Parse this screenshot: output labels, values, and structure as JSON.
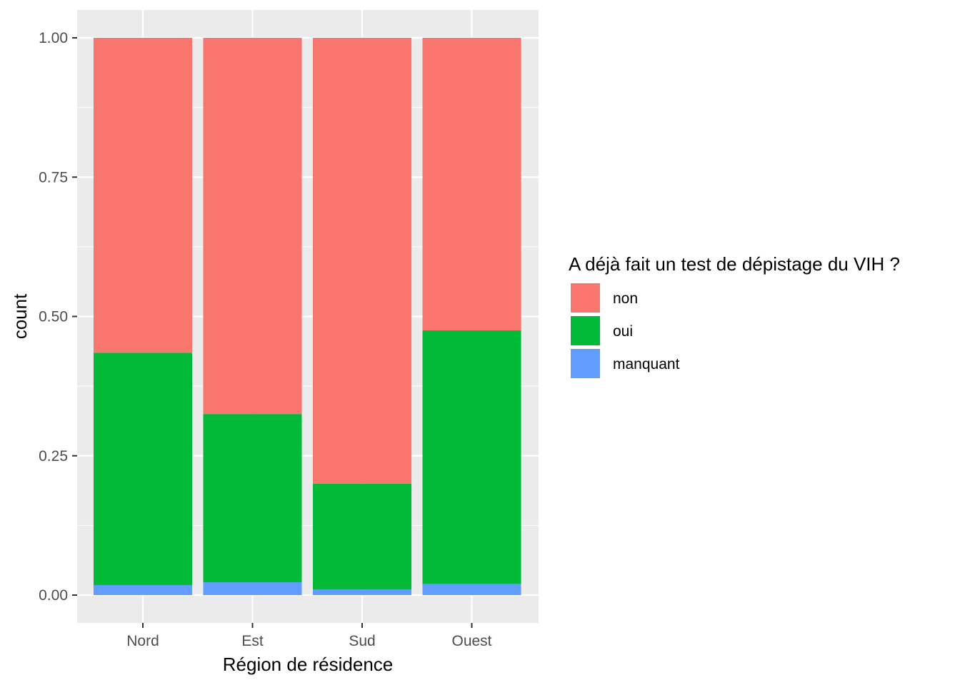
{
  "chart_data": {
    "type": "bar",
    "stacked": true,
    "normalized": true,
    "categories": [
      "Nord",
      "Est",
      "Sud",
      "Ouest"
    ],
    "series": [
      {
        "name": "non",
        "color": "#F8766D",
        "values": [
          0.565,
          0.675,
          0.8,
          0.525
        ]
      },
      {
        "name": "oui",
        "color": "#00BA38",
        "values": [
          0.417,
          0.302,
          0.19,
          0.455
        ]
      },
      {
        "name": "manquant",
        "color": "#619CFF",
        "values": [
          0.018,
          0.023,
          0.01,
          0.02
        ]
      }
    ],
    "xlabel": "Région de résidence",
    "ylabel": "count",
    "ylim": [
      0,
      1
    ],
    "yticks": [
      "0.00",
      "0.25",
      "0.50",
      "0.75",
      "1.00"
    ],
    "ytick_values": [
      0,
      0.25,
      0.5,
      0.75,
      1
    ],
    "grid": true,
    "panel_background": "#EBEBEB",
    "legend": {
      "title": "A déjà fait un test de dépistage du VIH ?",
      "placement": "right"
    }
  }
}
